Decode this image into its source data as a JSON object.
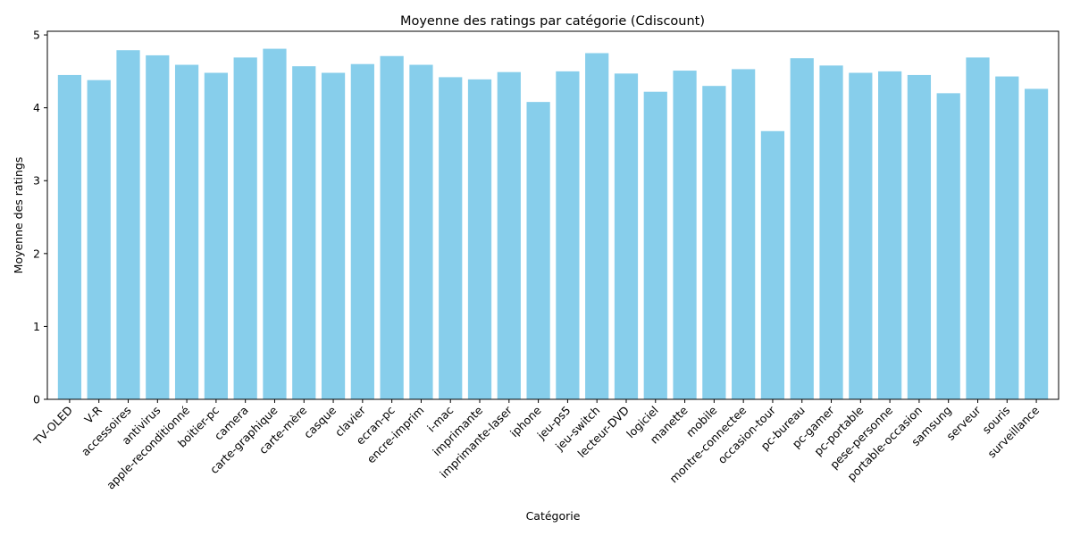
{
  "chart_data": {
    "type": "bar",
    "title": "Moyenne des ratings par catégorie (Cdiscount)",
    "xlabel": "Catégorie",
    "ylabel": "Moyenne des ratings",
    "ylim": [
      0,
      5.05
    ],
    "yticks": [
      0,
      1,
      2,
      3,
      4,
      5
    ],
    "grid": false,
    "bar_color": "#87ceeb",
    "categories": [
      "TV-OLED",
      "V-R",
      "accessoires",
      "antivirus",
      "apple-reconditionné",
      "boitier-pc",
      "camera",
      "carte-graphique",
      "carte-mère",
      "casque",
      "clavier",
      "ecran-pc",
      "encre-imprim",
      "i-mac",
      "imprimante",
      "imprimante-laser",
      "iphone",
      "jeu-ps5",
      "jeu-switch",
      "lecteur-DVD",
      "logiciel",
      "manette",
      "mobile",
      "montre-connectee",
      "occasion-tour",
      "pc-bureau",
      "pc-gamer",
      "pc-portable",
      "pese-personne",
      "portable-occasion",
      "samsung",
      "serveur",
      "souris",
      "surveillance"
    ],
    "values": [
      4.45,
      4.38,
      4.79,
      4.72,
      4.59,
      4.48,
      4.69,
      4.81,
      4.57,
      4.48,
      4.6,
      4.71,
      4.59,
      4.42,
      4.39,
      4.49,
      4.08,
      4.5,
      4.75,
      4.47,
      4.22,
      4.51,
      4.3,
      4.53,
      3.68,
      4.68,
      4.58,
      4.48,
      4.5,
      4.45,
      4.2,
      4.69,
      4.43,
      4.26
    ]
  }
}
